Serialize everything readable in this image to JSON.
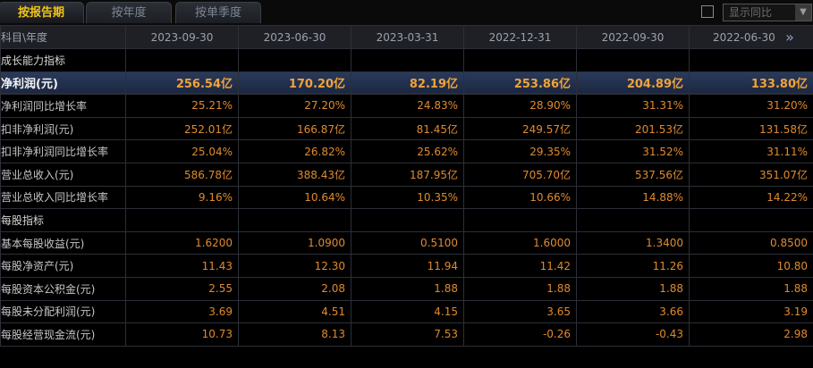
{
  "tabs": [
    {
      "label": "按报告期",
      "active": true
    },
    {
      "label": "按年度",
      "active": false
    },
    {
      "label": "按单季度",
      "active": false
    }
  ],
  "compare": {
    "label": "显示同比"
  },
  "header": {
    "label": "科目\\年度",
    "periods": [
      "2023-09-30",
      "2023-06-30",
      "2023-03-31",
      "2022-12-31",
      "2022-09-30",
      "2022-06-30"
    ]
  },
  "rows": [
    {
      "label": "成长能力指标",
      "type": "section",
      "values": [
        "",
        "",
        "",
        "",
        "",
        ""
      ]
    },
    {
      "label": "净利润(元)",
      "type": "highlight",
      "values": [
        "256.54亿",
        "170.20亿",
        "82.19亿",
        "253.86亿",
        "204.89亿",
        "133.80亿"
      ]
    },
    {
      "label": "净利润同比增长率",
      "type": "data",
      "values": [
        "25.21%",
        "27.20%",
        "24.83%",
        "28.90%",
        "31.31%",
        "31.20%"
      ]
    },
    {
      "label": "扣非净利润(元)",
      "type": "data",
      "values": [
        "252.01亿",
        "166.87亿",
        "81.45亿",
        "249.57亿",
        "201.53亿",
        "131.58亿"
      ]
    },
    {
      "label": "扣非净利润同比增长率",
      "type": "data",
      "values": [
        "25.04%",
        "26.82%",
        "25.62%",
        "29.35%",
        "31.52%",
        "31.11%"
      ]
    },
    {
      "label": "营业总收入(元)",
      "type": "data",
      "values": [
        "586.78亿",
        "388.43亿",
        "187.95亿",
        "705.70亿",
        "537.56亿",
        "351.07亿"
      ]
    },
    {
      "label": "营业总收入同比增长率",
      "type": "data",
      "values": [
        "9.16%",
        "10.64%",
        "10.35%",
        "10.66%",
        "14.88%",
        "14.22%"
      ]
    },
    {
      "label": "每股指标",
      "type": "section",
      "values": [
        "",
        "",
        "",
        "",
        "",
        ""
      ]
    },
    {
      "label": "基本每股收益(元)",
      "type": "data",
      "values": [
        "1.6200",
        "1.0900",
        "0.5100",
        "1.6000",
        "1.3400",
        "0.8500"
      ]
    },
    {
      "label": "每股净资产(元)",
      "type": "data",
      "values": [
        "11.43",
        "12.30",
        "11.94",
        "11.42",
        "11.26",
        "10.80"
      ]
    },
    {
      "label": "每股资本公积金(元)",
      "type": "data",
      "values": [
        "2.55",
        "2.08",
        "1.88",
        "1.88",
        "1.88",
        "1.88"
      ]
    },
    {
      "label": "每股未分配利润(元)",
      "type": "data",
      "values": [
        "3.69",
        "4.51",
        "4.15",
        "3.65",
        "3.66",
        "3.19"
      ]
    },
    {
      "label": "每股经营现金流(元)",
      "type": "data",
      "values": [
        "10.73",
        "8.13",
        "7.53",
        "-0.26",
        "-0.43",
        "2.98"
      ]
    }
  ]
}
